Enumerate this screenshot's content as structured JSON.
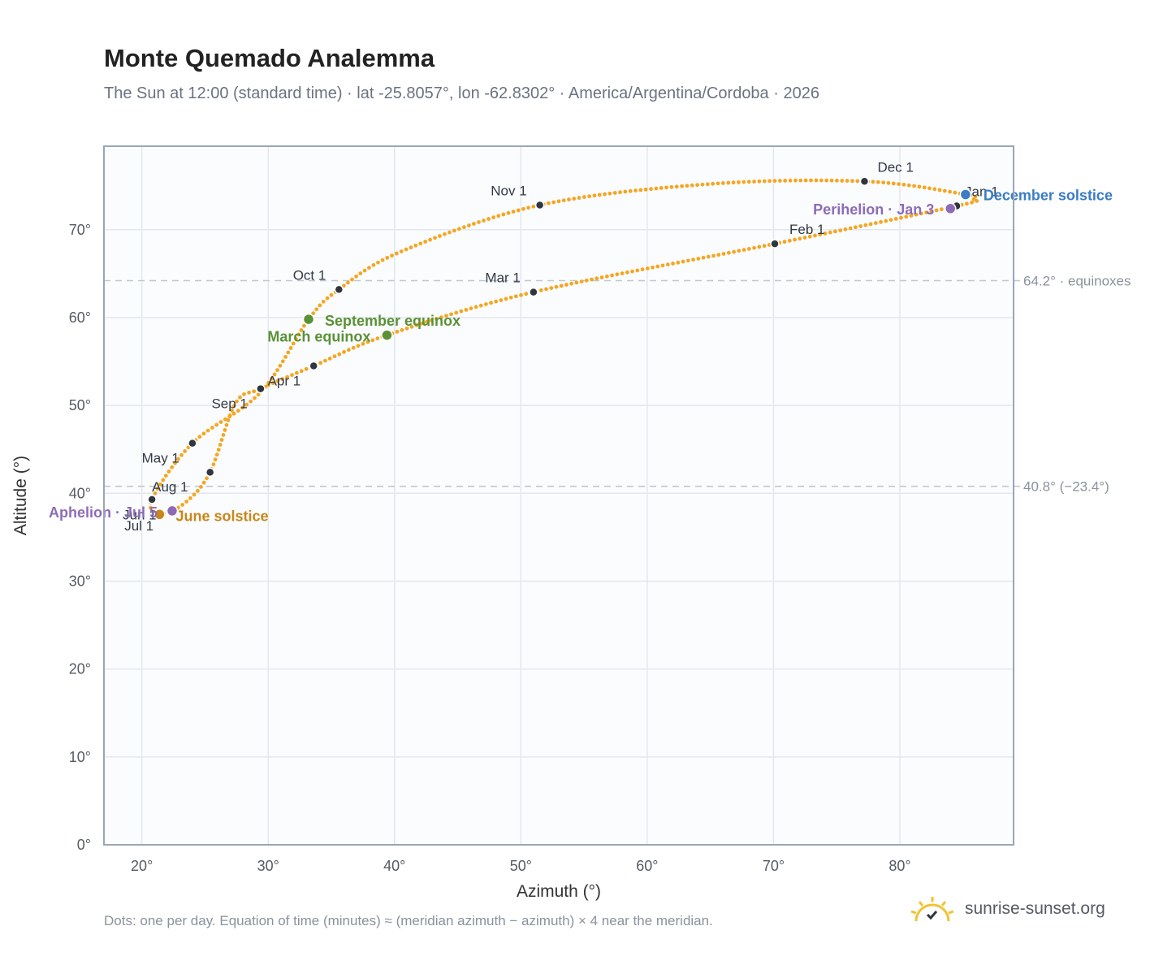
{
  "header": {
    "title": "Monte Quemado Analemma",
    "subtitle": "The Sun at 12:00 (standard time) · lat -25.8057°, lon -62.8302° · America/Argentina/Cordoba · 2026"
  },
  "footer": {
    "note": "Dots: one per day. Equation of time (minutes) ≈ (meridian azimuth − azimuth) × 4 near the meridian.",
    "brand": "sunrise-sunset.org",
    "brand_icon": "sun-logo-icon"
  },
  "colors": {
    "path": "#f5a623",
    "month_marker": "#2f3640",
    "equinox": "#5a9136",
    "june_solstice": "#c8871a",
    "december_solstice": "#3b7cc4",
    "apsis": "#8e6bb8",
    "plot_bg": "#fafcfe",
    "grid": "#e3e8ee",
    "frame": "#9aa6b4",
    "ref_line": "#c0c8d0"
  },
  "chart_data": {
    "type": "scatter",
    "xlabel": "Azimuth (°)",
    "ylabel": "Altitude (°)",
    "xlim": [
      17,
      89
    ],
    "ylim": [
      0,
      79.5
    ],
    "x_ticks": [
      {
        "value": 20,
        "label": "20°"
      },
      {
        "value": 30,
        "label": "30°"
      },
      {
        "value": 40,
        "label": "40°"
      },
      {
        "value": 50,
        "label": "50°"
      },
      {
        "value": 60,
        "label": "60°"
      },
      {
        "value": 70,
        "label": "70°"
      },
      {
        "value": 80,
        "label": "80°"
      }
    ],
    "y_ticks": [
      {
        "value": 0,
        "label": "0°"
      },
      {
        "value": 10,
        "label": "10°"
      },
      {
        "value": 20,
        "label": "20°"
      },
      {
        "value": 30,
        "label": "30°"
      },
      {
        "value": 40,
        "label": "40°"
      },
      {
        "value": 50,
        "label": "50°"
      },
      {
        "value": 60,
        "label": "60°"
      },
      {
        "value": 70,
        "label": "70°"
      }
    ],
    "grid": true,
    "reference_lines": [
      {
        "y": 64.2,
        "label": "64.2° · equinoxes"
      },
      {
        "y": 40.8,
        "label": "40.8° (−23.4°)"
      }
    ],
    "path_waypoints": [
      {
        "x": 84.5,
        "y": 72.7
      },
      {
        "x": 70.1,
        "y": 68.4
      },
      {
        "x": 51.0,
        "y": 62.9
      },
      {
        "x": 39.4,
        "y": 58.0
      },
      {
        "x": 33.6,
        "y": 54.5
      },
      {
        "x": 29.4,
        "y": 51.9
      },
      {
        "x": 27.4,
        "y": 50.2
      },
      {
        "x": 25.4,
        "y": 42.4
      },
      {
        "x": 23.4,
        "y": 38.9
      },
      {
        "x": 21.5,
        "y": 37.7
      },
      {
        "x": 20.8,
        "y": 39.3
      },
      {
        "x": 24.0,
        "y": 45.7
      },
      {
        "x": 29.4,
        "y": 51.5
      },
      {
        "x": 33.2,
        "y": 59.8
      },
      {
        "x": 35.6,
        "y": 63.2
      },
      {
        "x": 40.5,
        "y": 67.5
      },
      {
        "x": 51.5,
        "y": 72.8
      },
      {
        "x": 65.0,
        "y": 75.2
      },
      {
        "x": 77.2,
        "y": 75.5
      },
      {
        "x": 85.2,
        "y": 74.0
      },
      {
        "x": 85.8,
        "y": 73.4
      },
      {
        "x": 84.5,
        "y": 72.7
      }
    ],
    "month_markers": [
      {
        "label": "Jan 1",
        "x": 84.5,
        "y": 72.7,
        "anchor": "start",
        "dx": 10,
        "dy": -12
      },
      {
        "label": "Feb 1",
        "x": 70.1,
        "y": 68.4,
        "anchor": "start",
        "dx": 18,
        "dy": -12
      },
      {
        "label": "Mar 1",
        "x": 51.0,
        "y": 62.9,
        "anchor": "end",
        "dx": -16,
        "dy": -12
      },
      {
        "label": "Apr 1",
        "x": 33.6,
        "y": 54.5,
        "anchor": "end",
        "dx": -16,
        "dy": 24
      },
      {
        "label": "May 1",
        "x": 24.0,
        "y": 45.7,
        "anchor": "end",
        "dx": -16,
        "dy": 24
      },
      {
        "label": "Jun 1",
        "x": 25.4,
        "y": 42.4,
        "anchor": "end",
        "dx": -66,
        "dy": 58
      },
      {
        "label": "Jul 1",
        "x": 20.8,
        "y": 39.3,
        "anchor": "end",
        "dx": 2,
        "dy": 38
      },
      {
        "label": "Aug 1",
        "x": 20.8,
        "y": 39.3,
        "anchor": "start",
        "dx": 0,
        "dy": -10
      },
      {
        "label": "Sep 1",
        "x": 29.4,
        "y": 51.9,
        "anchor": "end",
        "dx": -16,
        "dy": 24
      },
      {
        "label": "Oct 1",
        "x": 35.6,
        "y": 63.2,
        "anchor": "end",
        "dx": -16,
        "dy": -12
      },
      {
        "label": "Nov 1",
        "x": 51.5,
        "y": 72.8,
        "anchor": "end",
        "dx": -16,
        "dy": -12
      },
      {
        "label": "Dec 1",
        "x": 77.2,
        "y": 75.5,
        "anchor": "start",
        "dx": 16,
        "dy": -12
      }
    ],
    "events": [
      {
        "label": "December solstice",
        "x": 85.2,
        "y": 74.0,
        "color_key": "december_solstice",
        "anchor": "start",
        "dx": 22,
        "dy": 7
      },
      {
        "label": "Perihelion · Jan 3",
        "x": 84.0,
        "y": 72.4,
        "color_key": "apsis",
        "anchor": "end",
        "dx": -20,
        "dy": 7
      },
      {
        "label": "September equinox",
        "x": 33.2,
        "y": 59.8,
        "color_key": "equinox",
        "anchor": "start",
        "dx": 20,
        "dy": 8
      },
      {
        "label": "March equinox",
        "x": 39.4,
        "y": 58.0,
        "color_key": "equinox",
        "anchor": "end",
        "dx": -20,
        "dy": 8
      },
      {
        "label": "June solstice",
        "x": 21.4,
        "y": 37.6,
        "color_key": "june_solstice",
        "anchor": "start",
        "dx": 20,
        "dy": 8
      },
      {
        "label": "Aphelion · Jul 5",
        "x": 22.4,
        "y": 38.0,
        "color_key": "apsis",
        "anchor": "end",
        "dx": -18,
        "dy": 8
      }
    ]
  }
}
